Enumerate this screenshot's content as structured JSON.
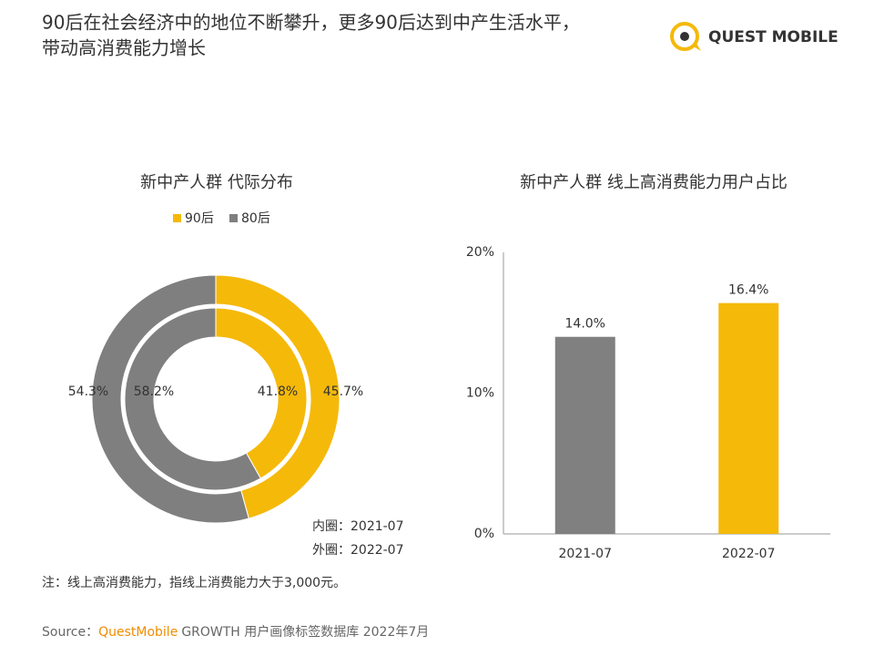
{
  "title": [
    "90后在社会经济中的地位不断攀升，更多90后达到中产生活水平，",
    "带动高消费能力增长"
  ],
  "logo": "QUEST MOBILE",
  "chart_data": [
    {
      "type": "donut",
      "title": "新中产人群 代际分布",
      "categories": [
        "90后",
        "80后"
      ],
      "colors": [
        "#f5b90a",
        "#7f7f7f"
      ],
      "series": [
        {
          "name": "内圈：2021-07",
          "values": [
            41.8,
            58.2
          ],
          "value_labels": [
            "41.8%",
            "58.2%"
          ]
        },
        {
          "name": "外圈：2022-07",
          "values": [
            45.7,
            54.3
          ],
          "value_labels": [
            "45.7%",
            "54.3%"
          ]
        }
      ]
    },
    {
      "type": "bar",
      "title": "新中产人群 线上高消费能力用户占比",
      "categories": [
        "2021-07",
        "2022-07"
      ],
      "values": [
        14.0,
        16.4
      ],
      "value_labels": [
        "14.0%",
        "16.4%"
      ],
      "colors": [
        "#808080",
        "#f5b90a"
      ],
      "ylim": [
        0,
        20
      ],
      "yticks": [
        {
          "value": 0,
          "label": "0%"
        },
        {
          "value": 10,
          "label": "10%"
        },
        {
          "value": 20,
          "label": "20%"
        }
      ],
      "grid": false
    }
  ],
  "note": "注：线上高消费能力，指线上消费能力大于3,000元。",
  "source": {
    "label": "Source：",
    "brand": "QuestMobile",
    "text": "GROWTH 用户画像标签数据库 2022年7月"
  }
}
